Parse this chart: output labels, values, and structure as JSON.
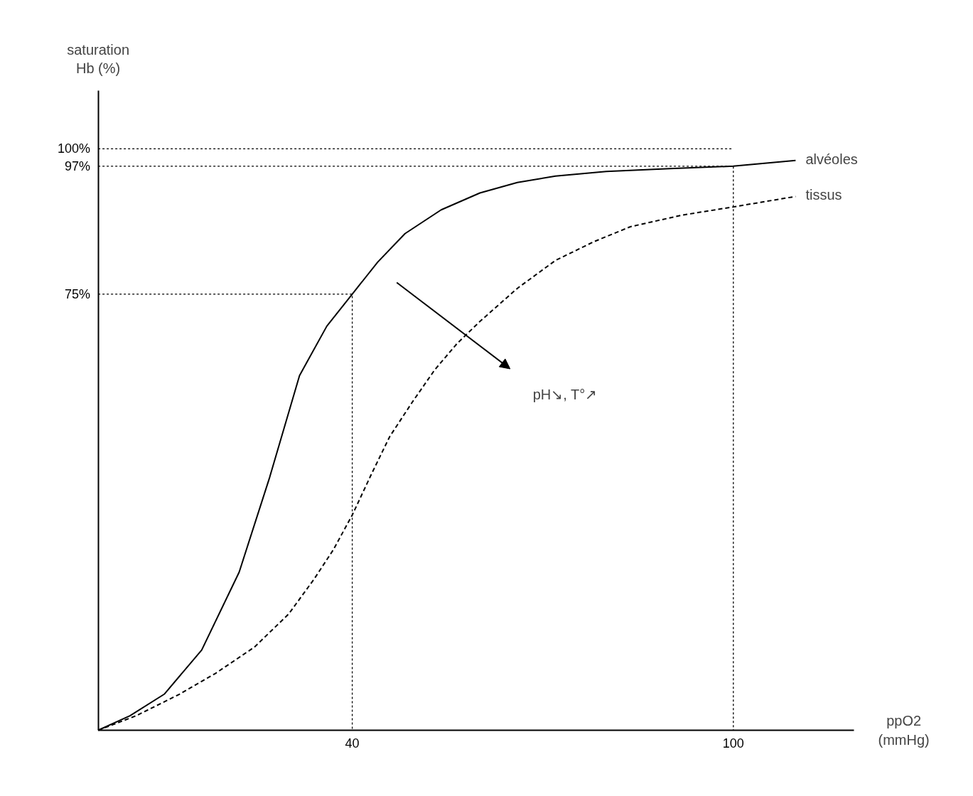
{
  "chart_data": {
    "type": "line",
    "xlabel": "ppO2\n(mmHg)",
    "ylabel": "saturation\nHb (%)",
    "xlim": [
      0,
      119
    ],
    "ylim": [
      0,
      110
    ],
    "xticks": [
      40,
      100
    ],
    "yticks": [
      {
        "value": 75,
        "label": "75%"
      },
      {
        "value": 97,
        "label": "97%"
      },
      {
        "value": 100,
        "label": "100%"
      }
    ],
    "grid": false,
    "legend": false,
    "marker": "none",
    "series": [
      {
        "name": "alvéoles",
        "color": "#000000",
        "line_style": "solid",
        "x": [
          0,
          5,
          10.4,
          16.3,
          22.2,
          27,
          31.7,
          36,
          40,
          44,
          48.3,
          54,
          60.1,
          66,
          72,
          80,
          90,
          100,
          109.8
        ],
        "values": [
          0,
          2.5,
          6.2,
          13.8,
          27.2,
          43.5,
          61,
          69.5,
          75,
          80.5,
          85.4,
          89.5,
          92.4,
          94.2,
          95.3,
          96.1,
          96.6,
          97,
          98
        ]
      },
      {
        "name": "tissus",
        "color": "#000000",
        "line_style": "dashed",
        "x": [
          0,
          6,
          12.8,
          18.5,
          24.6,
          30,
          34,
          37,
          40,
          43,
          45.9,
          49.5,
          53,
          56.5,
          60.1,
          66,
          72,
          78,
          83.8,
          92,
          100,
          109.8
        ],
        "values": [
          0,
          2.5,
          6.2,
          9.8,
          14.3,
          20,
          26,
          31,
          37,
          44,
          50.5,
          56.5,
          62,
          66.5,
          70.3,
          76,
          80.8,
          84,
          86.6,
          88.6,
          90,
          91.8
        ]
      },
      {
        "color": "#000000",
        "line_style": "dotted",
        "x": [
          0,
          100
        ],
        "values": [
          100,
          100
        ]
      },
      {
        "color": "#000000",
        "line_style": "dotted",
        "x": [
          0,
          100,
          100
        ],
        "values": [
          97,
          97,
          0
        ]
      },
      {
        "color": "#000000",
        "line_style": "dotted",
        "x": [
          0,
          40,
          40
        ],
        "values": [
          75,
          75,
          0
        ]
      }
    ],
    "annotations": [
      "pH↘, T°↗"
    ]
  }
}
